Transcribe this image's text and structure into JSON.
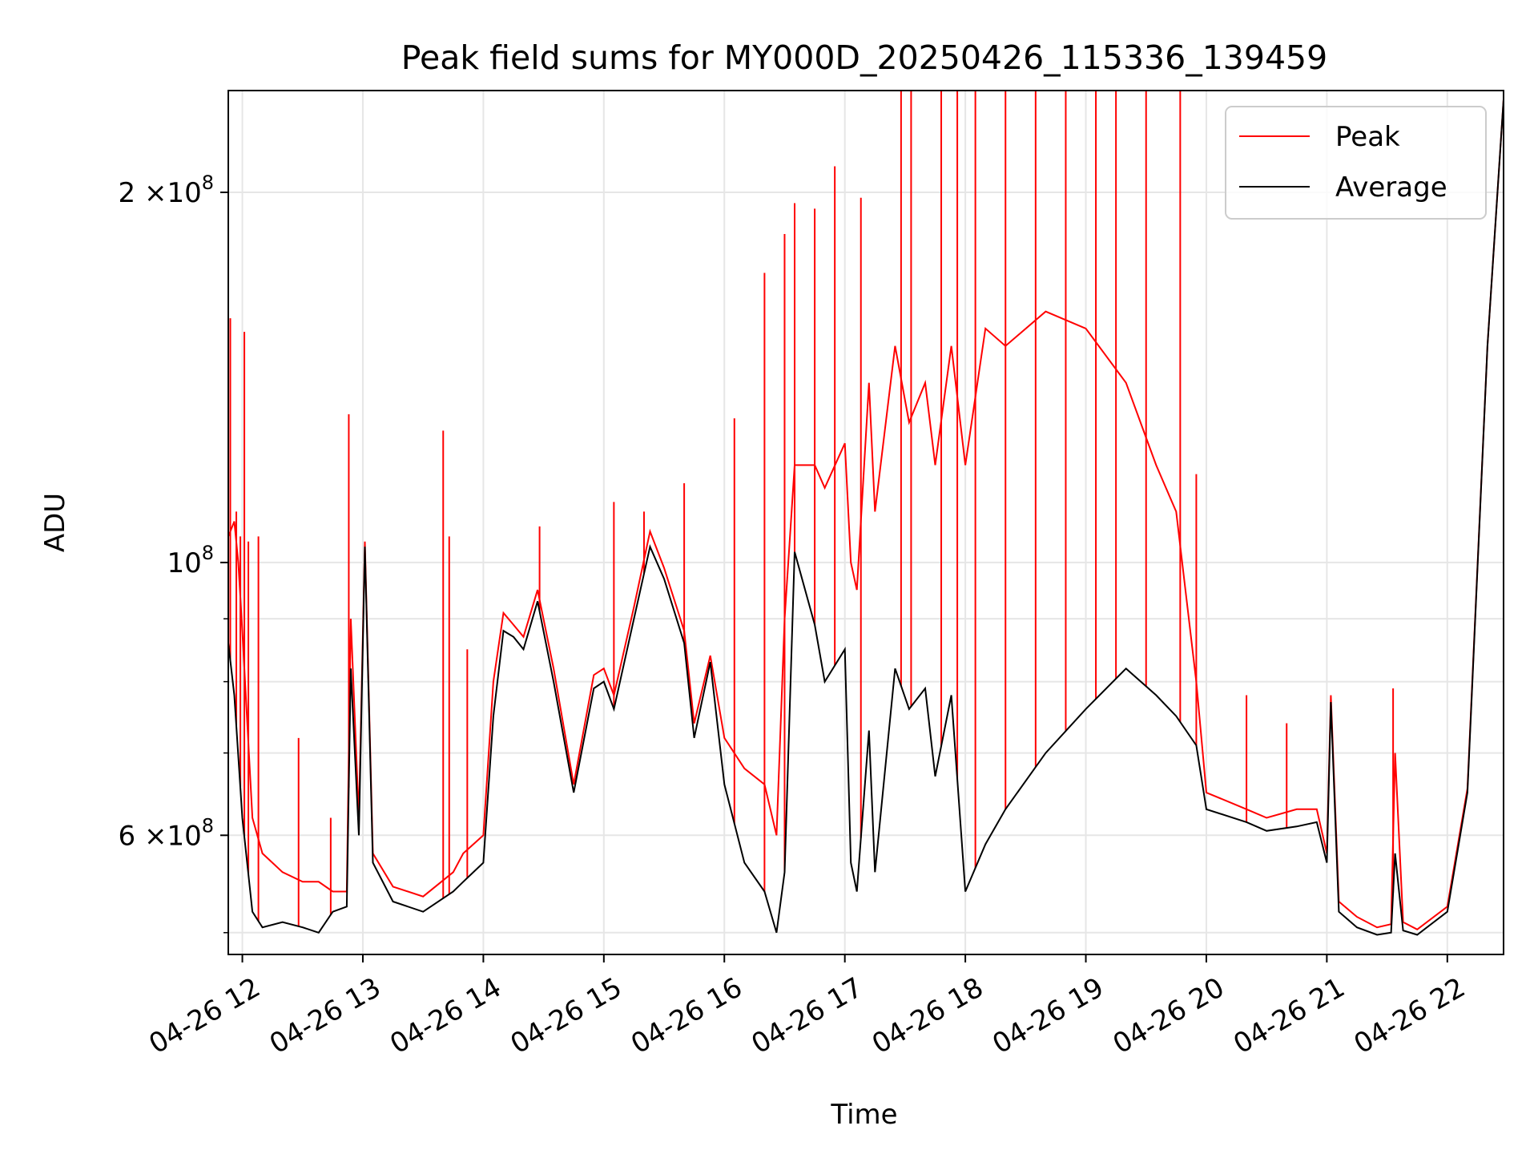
{
  "chart_data": {
    "type": "line",
    "title": "Peak field sums for MY000D_20250426_115336_139459",
    "xlabel": "Time",
    "ylabel": "ADU",
    "y_scale": "log",
    "ylim": [
      48000000,
      242000000
    ],
    "xlim": [
      "2025-04-26 11:53",
      "2025-04-26 22:28"
    ],
    "grid": true,
    "legend_position": "top-right",
    "x_ticks": [
      "04-26 12",
      "04-26 13",
      "04-26 14",
      "04-26 15",
      "04-26 16",
      "04-26 17",
      "04-26 18",
      "04-26 19",
      "04-26 20",
      "04-26 21",
      "04-26 22"
    ],
    "x_tick_times": [
      "2025-04-26 12:00",
      "2025-04-26 13:00",
      "2025-04-26 14:00",
      "2025-04-26 15:00",
      "2025-04-26 16:00",
      "2025-04-26 17:00",
      "2025-04-26 18:00",
      "2025-04-26 19:00",
      "2025-04-26 20:00",
      "2025-04-26 21:00",
      "2025-04-26 22:00"
    ],
    "y_ticks": [
      {
        "value": 60000000,
        "mantissa": "6",
        "label": "×10"
      },
      {
        "value": 100000000,
        "mantissa": "",
        "label": "10"
      },
      {
        "value": 200000000,
        "mantissa": "2",
        "label": "×10"
      }
    ],
    "y_tick_exponent": "8",
    "y_minor_ticks": [
      50000000,
      70000000,
      80000000,
      90000000
    ],
    "series": [
      {
        "name": "Average",
        "color": "#000000",
        "x": [
          "2025-04-26 11:53",
          "2025-04-26 11:56",
          "2025-04-26 12:00",
          "2025-04-26 12:05",
          "2025-04-26 12:10",
          "2025-04-26 12:20",
          "2025-04-26 12:30",
          "2025-04-26 12:38",
          "2025-04-26 12:45",
          "2025-04-26 12:52",
          "2025-04-26 12:54",
          "2025-04-26 12:58",
          "2025-04-26 13:01",
          "2025-04-26 13:05",
          "2025-04-26 13:15",
          "2025-04-26 13:30",
          "2025-04-26 13:45",
          "2025-04-26 13:50",
          "2025-04-26 14:00",
          "2025-04-26 14:05",
          "2025-04-26 14:10",
          "2025-04-26 14:15",
          "2025-04-26 14:20",
          "2025-04-26 14:27",
          "2025-04-26 14:35",
          "2025-04-26 14:45",
          "2025-04-26 14:55",
          "2025-04-26 15:00",
          "2025-04-26 15:05",
          "2025-04-26 15:15",
          "2025-04-26 15:23",
          "2025-04-26 15:30",
          "2025-04-26 15:40",
          "2025-04-26 15:45",
          "2025-04-26 15:53",
          "2025-04-26 16:00",
          "2025-04-26 16:10",
          "2025-04-26 16:20",
          "2025-04-26 16:26",
          "2025-04-26 16:30",
          "2025-04-26 16:35",
          "2025-04-26 16:45",
          "2025-04-26 16:50",
          "2025-04-26 17:00",
          "2025-04-26 17:03",
          "2025-04-26 17:06",
          "2025-04-26 17:12",
          "2025-04-26 17:15",
          "2025-04-26 17:25",
          "2025-04-26 17:32",
          "2025-04-26 17:40",
          "2025-04-26 17:45",
          "2025-04-26 17:53",
          "2025-04-26 18:00",
          "2025-04-26 18:10",
          "2025-04-26 18:20",
          "2025-04-26 18:40",
          "2025-04-26 19:00",
          "2025-04-26 19:20",
          "2025-04-26 19:35",
          "2025-04-26 19:45",
          "2025-04-26 19:55",
          "2025-04-26 20:00",
          "2025-04-26 20:20",
          "2025-04-26 20:30",
          "2025-04-26 20:45",
          "2025-04-26 20:55",
          "2025-04-26 21:00",
          "2025-04-26 21:02",
          "2025-04-26 21:06",
          "2025-04-26 21:15",
          "2025-04-26 21:25",
          "2025-04-26 21:32",
          "2025-04-26 21:34",
          "2025-04-26 21:38",
          "2025-04-26 21:45",
          "2025-04-26 22:00",
          "2025-04-26 22:10",
          "2025-04-26 22:20",
          "2025-04-26 22:28"
        ],
        "values": [
          86000000,
          78000000,
          62000000,
          52000000,
          50500000,
          51000000,
          50500000,
          50000000,
          52000000,
          52500000,
          82000000,
          60000000,
          103000000,
          57000000,
          53000000,
          52000000,
          54000000,
          55000000,
          57000000,
          75000000,
          88000000,
          87000000,
          85000000,
          93000000,
          80000000,
          65000000,
          79000000,
          80000000,
          76000000,
          90000000,
          103000000,
          97000000,
          86000000,
          72000000,
          83000000,
          66000000,
          57000000,
          54000000,
          50000000,
          56000000,
          102000000,
          89000000,
          80000000,
          85000000,
          57000000,
          54000000,
          73000000,
          56000000,
          82000000,
          76000000,
          79000000,
          67000000,
          78000000,
          54000000,
          59000000,
          63000000,
          70000000,
          76000000,
          82000000,
          78000000,
          75000000,
          71000000,
          63000000,
          61500000,
          60500000,
          61000000,
          61500000,
          57000000,
          77000000,
          52000000,
          50500000,
          49800000,
          50000000,
          58000000,
          50200000,
          49800000,
          52000000,
          65000000,
          150000000,
          238000000
        ]
      },
      {
        "name": "Peak",
        "color": "#ff0000",
        "x": [
          "2025-04-26 11:53",
          "2025-04-26 11:56",
          "2025-04-26 11:58",
          "2025-04-26 12:00",
          "2025-04-26 12:05",
          "2025-04-26 12:10",
          "2025-04-26 12:20",
          "2025-04-26 12:30",
          "2025-04-26 12:38",
          "2025-04-26 12:45",
          "2025-04-26 12:52",
          "2025-04-26 12:54",
          "2025-04-26 12:58",
          "2025-04-26 13:01",
          "2025-04-26 13:05",
          "2025-04-26 13:15",
          "2025-04-26 13:30",
          "2025-04-26 13:45",
          "2025-04-26 13:50",
          "2025-04-26 14:00",
          "2025-04-26 14:05",
          "2025-04-26 14:10",
          "2025-04-26 14:15",
          "2025-04-26 14:20",
          "2025-04-26 14:27",
          "2025-04-26 14:35",
          "2025-04-26 14:45",
          "2025-04-26 14:55",
          "2025-04-26 15:00",
          "2025-04-26 15:05",
          "2025-04-26 15:15",
          "2025-04-26 15:23",
          "2025-04-26 15:30",
          "2025-04-26 15:40",
          "2025-04-26 15:45",
          "2025-04-26 15:53",
          "2025-04-26 16:00",
          "2025-04-26 16:10",
          "2025-04-26 16:20",
          "2025-04-26 16:26",
          "2025-04-26 16:30",
          "2025-04-26 16:35",
          "2025-04-26 16:45",
          "2025-04-26 16:50",
          "2025-04-26 17:00",
          "2025-04-26 17:03",
          "2025-04-26 17:06",
          "2025-04-26 17:12",
          "2025-04-26 17:15",
          "2025-04-26 17:25",
          "2025-04-26 17:32",
          "2025-04-26 17:40",
          "2025-04-26 17:45",
          "2025-04-26 17:53",
          "2025-04-26 18:00",
          "2025-04-26 18:10",
          "2025-04-26 18:20",
          "2025-04-26 18:40",
          "2025-04-26 19:00",
          "2025-04-26 19:20",
          "2025-04-26 19:35",
          "2025-04-26 19:45",
          "2025-04-26 19:55",
          "2025-04-26 20:00",
          "2025-04-26 20:20",
          "2025-04-26 20:30",
          "2025-04-26 20:45",
          "2025-04-26 20:55",
          "2025-04-26 21:00",
          "2025-04-26 21:02",
          "2025-04-26 21:06",
          "2025-04-26 21:15",
          "2025-04-26 21:25",
          "2025-04-26 21:32",
          "2025-04-26 21:34",
          "2025-04-26 21:38",
          "2025-04-26 21:45",
          "2025-04-26 22:00",
          "2025-04-26 22:10",
          "2025-04-26 22:20",
          "2025-04-26 22:28"
        ],
        "values": [
          105000000,
          108000000,
          100000000,
          88000000,
          62000000,
          58000000,
          56000000,
          55000000,
          55000000,
          54000000,
          54000000,
          90000000,
          62000000,
          104000000,
          58000000,
          54500000,
          53500000,
          56000000,
          58000000,
          60000000,
          80000000,
          91000000,
          89000000,
          87000000,
          95000000,
          82000000,
          66000000,
          81000000,
          82000000,
          78000000,
          92000000,
          106000000,
          99000000,
          88000000,
          74000000,
          84000000,
          72000000,
          68000000,
          66000000,
          60000000,
          90000000,
          120000000,
          120000000,
          115000000,
          125000000,
          100000000,
          95000000,
          140000000,
          110000000,
          150000000,
          130000000,
          140000000,
          120000000,
          150000000,
          120000000,
          155000000,
          150000000,
          160000000,
          155000000,
          140000000,
          120000000,
          110000000,
          80000000,
          65000000,
          63000000,
          62000000,
          63000000,
          63000000,
          58000000,
          78000000,
          53000000,
          51500000,
          50500000,
          50800000,
          70000000,
          51000000,
          50300000,
          52500000,
          65500000,
          150000000,
          238000000
        ]
      }
    ],
    "peak_spikes": {
      "x": [
        "2025-04-26 11:54",
        "2025-04-26 11:57",
        "2025-04-26 11:59",
        "2025-04-26 12:01",
        "2025-04-26 12:03",
        "2025-04-26 12:08",
        "2025-04-26 12:28",
        "2025-04-26 12:44",
        "2025-04-26 12:53",
        "2025-04-26 13:40",
        "2025-04-26 13:43",
        "2025-04-26 13:52",
        "2025-04-26 14:28",
        "2025-04-26 15:05",
        "2025-04-26 15:20",
        "2025-04-26 15:40",
        "2025-04-26 16:05",
        "2025-04-26 16:20",
        "2025-04-26 16:30",
        "2025-04-26 16:35",
        "2025-04-26 16:45",
        "2025-04-26 16:55",
        "2025-04-26 17:08",
        "2025-04-26 17:28",
        "2025-04-26 17:33",
        "2025-04-26 17:48",
        "2025-04-26 17:56",
        "2025-04-26 18:05",
        "2025-04-26 18:20",
        "2025-04-26 18:35",
        "2025-04-26 18:50",
        "2025-04-26 19:05",
        "2025-04-26 19:15",
        "2025-04-26 19:30",
        "2025-04-26 19:47",
        "2025-04-26 19:55",
        "2025-04-26 20:20",
        "2025-04-26 20:40",
        "2025-04-26 21:33"
      ],
      "values": [
        158000000,
        110000000,
        105000000,
        154000000,
        104000000,
        105000000,
        72000000,
        62000000,
        132000000,
        128000000,
        105000000,
        85000000,
        107000000,
        112000000,
        110000000,
        116000000,
        131000000,
        172000000,
        185000000,
        196000000,
        194000000,
        210000000,
        198000000,
        242000000,
        242000000,
        242000000,
        242000000,
        242000000,
        242000000,
        242000000,
        242000000,
        242000000,
        242000000,
        242000000,
        242000000,
        118000000,
        78000000,
        74000000,
        79000000
      ]
    }
  }
}
